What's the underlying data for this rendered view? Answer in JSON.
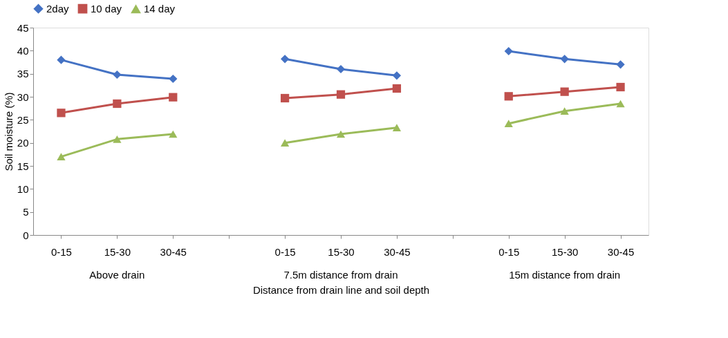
{
  "chart_data": {
    "type": "line",
    "xlabel": "Distance from drain line and soil depth",
    "ylabel": "Soil moisture (%)",
    "categories": [
      "0-15",
      "15-30",
      "30-45",
      null,
      "0-15",
      "15-30",
      "30-45",
      null,
      "0-15",
      "15-30",
      "30-45"
    ],
    "series": [
      {
        "name": "2day",
        "color": "#4472c4",
        "marker": "diamond",
        "values": [
          38,
          34.8,
          33.9,
          null,
          38.2,
          36,
          34.6,
          null,
          39.9,
          38.2,
          37
        ]
      },
      {
        "name": "10 day",
        "color": "#c0504d",
        "marker": "square",
        "values": [
          26.5,
          28.5,
          29.9,
          null,
          29.7,
          30.5,
          31.8,
          null,
          30.1,
          31.1,
          32.1
        ]
      },
      {
        "name": "14 day",
        "color": "#9bbb59",
        "marker": "triangle",
        "values": [
          17,
          20.8,
          21.9,
          null,
          20,
          21.9,
          23.3,
          null,
          24.2,
          26.9,
          28.5
        ]
      }
    ],
    "annotations": [
      "Above drain",
      "7.5m distance from drain",
      "15m distance from drain"
    ],
    "ylim": [
      0,
      45
    ],
    "yticks": [
      0,
      5,
      10,
      15,
      20,
      25,
      30,
      35,
      40,
      45
    ],
    "grid": false,
    "legend": "top"
  }
}
